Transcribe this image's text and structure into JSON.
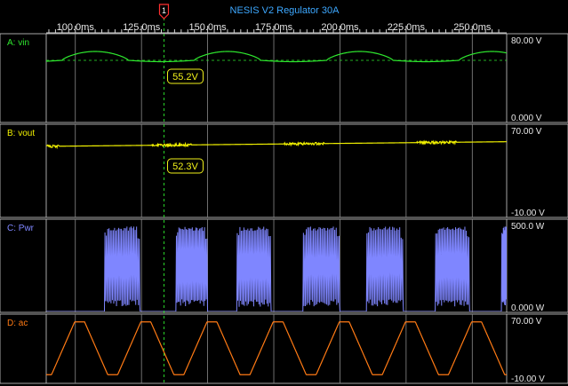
{
  "window": {
    "title": "NESIS V2 Regulator 30A"
  },
  "cursor": {
    "marker": "1",
    "time_ms": 133.5,
    "color": "#2ee82e"
  },
  "time_axis": {
    "range_ms": [
      89,
      263
    ],
    "ticks_ms": [
      100,
      125,
      150,
      175,
      200,
      225,
      250
    ],
    "tick_labels": [
      "100.0ms",
      "125.0ms",
      "150.0ms",
      "175.0ms",
      "200.0ms",
      "225.0ms",
      "250.0ms"
    ]
  },
  "channels": [
    {
      "id": "A",
      "label": "A: vin",
      "color": "#2ee82e",
      "scale_top": "80.00 V",
      "scale_bottom": "0.000 V",
      "range": [
        0,
        80
      ],
      "cursor_readout": "55.2V",
      "hline": 56,
      "kind": "vin"
    },
    {
      "id": "B",
      "label": "B: vout",
      "color": "#f0f000",
      "scale_top": "70.00 V",
      "scale_bottom": "-10.00 V",
      "range": [
        -10,
        70
      ],
      "cursor_readout": "52.3V",
      "kind": "vout"
    },
    {
      "id": "C",
      "label": "C: Pwr",
      "color": "#7f86ff",
      "scale_top": "500.0 W",
      "scale_bottom": "0.000 W",
      "range": [
        0,
        500
      ],
      "kind": "pwr"
    },
    {
      "id": "D",
      "label": "D: ac",
      "color": "#ff7a14",
      "scale_top": "70.00 V",
      "scale_bottom": "-10.00 V",
      "range": [
        -10,
        70
      ],
      "kind": "ac"
    }
  ],
  "icons": {
    "cursor_marker": "cursor-flag-icon"
  }
}
